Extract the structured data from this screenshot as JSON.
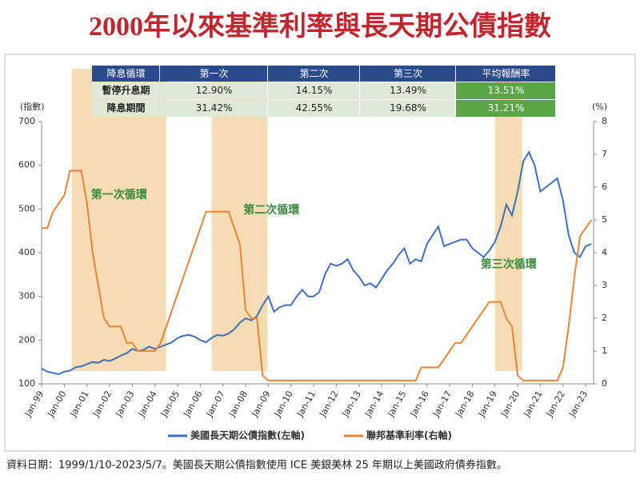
{
  "chart_data": {
    "type": "line",
    "title": "2000年以來基準利率與長天期公債指數",
    "ylabel": "(指數)",
    "y2label": "(%)",
    "x": [
      1999,
      1999.25,
      1999.5,
      1999.75,
      2000,
      2000.25,
      2000.5,
      2000.75,
      2001,
      2001.25,
      2001.5,
      2001.75,
      2002,
      2002.25,
      2002.5,
      2002.75,
      2003,
      2003.25,
      2003.5,
      2003.75,
      2004,
      2004.25,
      2004.5,
      2004.75,
      2005,
      2005.25,
      2005.5,
      2005.75,
      2006,
      2006.25,
      2006.5,
      2006.75,
      2007,
      2007.25,
      2007.5,
      2007.75,
      2008,
      2008.25,
      2008.5,
      2008.75,
      2009,
      2009.25,
      2009.5,
      2009.75,
      2010,
      2010.25,
      2010.5,
      2010.75,
      2011,
      2011.25,
      2011.5,
      2011.75,
      2012,
      2012.25,
      2012.5,
      2012.75,
      2013,
      2013.25,
      2013.5,
      2013.75,
      2014,
      2014.25,
      2014.5,
      2014.75,
      2015,
      2015.25,
      2015.5,
      2015.75,
      2016,
      2016.25,
      2016.5,
      2016.75,
      2017,
      2017.25,
      2017.5,
      2017.75,
      2018,
      2018.25,
      2018.5,
      2018.75,
      2019,
      2019.25,
      2019.5,
      2019.75,
      2020,
      2020.25,
      2020.5,
      2020.75,
      2021,
      2021.25,
      2021.5,
      2021.75,
      2022,
      2022.25,
      2022.5,
      2022.75,
      2023,
      2023.25
    ],
    "series": [
      {
        "name": "美國長天期公債指數(左軸)",
        "color": "#3f6fbf",
        "axis": "y",
        "values": [
          135,
          128,
          125,
          122,
          128,
          130,
          138,
          140,
          145,
          150,
          148,
          155,
          152,
          158,
          165,
          170,
          180,
          175,
          178,
          185,
          180,
          185,
          190,
          195,
          205,
          210,
          212,
          208,
          200,
          195,
          205,
          212,
          210,
          215,
          225,
          240,
          250,
          245,
          255,
          280,
          300,
          265,
          275,
          280,
          280,
          300,
          315,
          300,
          300,
          310,
          350,
          375,
          370,
          375,
          385,
          360,
          345,
          325,
          330,
          320,
          340,
          360,
          375,
          395,
          410,
          375,
          385,
          380,
          420,
          440,
          460,
          415,
          420,
          425,
          430,
          430,
          410,
          400,
          390,
          405,
          425,
          460,
          510,
          485,
          540,
          610,
          630,
          600,
          540,
          550,
          560,
          570,
          520,
          440,
          400,
          390,
          415,
          420
        ]
      },
      {
        "name": "聯邦基準利率(右軸)",
        "color": "#e8853a",
        "axis": "y2",
        "values": [
          4.75,
          4.75,
          5.25,
          5.5,
          5.75,
          6.5,
          6.5,
          6.5,
          5.5,
          4.0,
          3.0,
          2.0,
          1.75,
          1.75,
          1.75,
          1.25,
          1.25,
          1.0,
          1.0,
          1.0,
          1.0,
          1.25,
          1.75,
          2.25,
          2.75,
          3.25,
          3.75,
          4.25,
          4.75,
          5.25,
          5.25,
          5.25,
          5.25,
          5.25,
          4.75,
          4.25,
          2.25,
          2.0,
          2.0,
          0.25,
          0.1,
          0.1,
          0.1,
          0.1,
          0.1,
          0.1,
          0.1,
          0.1,
          0.1,
          0.1,
          0.1,
          0.1,
          0.1,
          0.1,
          0.1,
          0.1,
          0.1,
          0.1,
          0.1,
          0.1,
          0.1,
          0.1,
          0.1,
          0.1,
          0.1,
          0.1,
          0.1,
          0.5,
          0.5,
          0.5,
          0.5,
          0.75,
          1.0,
          1.25,
          1.25,
          1.5,
          1.75,
          2.0,
          2.25,
          2.5,
          2.5,
          2.5,
          2.0,
          1.75,
          0.25,
          0.1,
          0.1,
          0.1,
          0.1,
          0.1,
          0.1,
          0.1,
          0.5,
          1.75,
          3.25,
          4.5,
          4.75,
          5.0
        ]
      }
    ],
    "xlim": [
      1999,
      2023.35
    ],
    "xticks": [
      {
        "value": 1999,
        "label": "Jan-99"
      },
      {
        "value": 2000,
        "label": "Jan-00"
      },
      {
        "value": 2001,
        "label": "Jan-01"
      },
      {
        "value": 2002,
        "label": "Jan-02"
      },
      {
        "value": 2003,
        "label": "Jan-03"
      },
      {
        "value": 2004,
        "label": "Jan-04"
      },
      {
        "value": 2005,
        "label": "Jan-05"
      },
      {
        "value": 2006,
        "label": "Jan-06"
      },
      {
        "value": 2007,
        "label": "Jan-07"
      },
      {
        "value": 2008,
        "label": "Jan-08"
      },
      {
        "value": 2009,
        "label": "Jan-09"
      },
      {
        "value": 2010,
        "label": "Jan-10"
      },
      {
        "value": 2011,
        "label": "Jan-11"
      },
      {
        "value": 2012,
        "label": "Jan-12"
      },
      {
        "value": 2013,
        "label": "Jan-13"
      },
      {
        "value": 2014,
        "label": "Jan-14"
      },
      {
        "value": 2015,
        "label": "Jan-15"
      },
      {
        "value": 2016,
        "label": "Jan-16"
      },
      {
        "value": 2017,
        "label": "Jan-17"
      },
      {
        "value": 2018,
        "label": "Jan-18"
      },
      {
        "value": 2019,
        "label": "Jan-19"
      },
      {
        "value": 2020,
        "label": "Jan-20"
      },
      {
        "value": 2021,
        "label": "Jan-21"
      },
      {
        "value": 2022,
        "label": "Jan-22"
      },
      {
        "value": 2023,
        "label": "Jan-23"
      }
    ],
    "ylim": [
      100,
      700
    ],
    "yticks": [
      100,
      200,
      300,
      400,
      500,
      600,
      700
    ],
    "y2lim": [
      0,
      8
    ],
    "y2ticks": [
      0,
      1,
      2,
      3,
      4,
      5,
      6,
      7,
      8
    ],
    "cycles": [
      {
        "label": "第一次循環",
        "start": 2000.33,
        "end": 2004.5
      },
      {
        "label": "第二次循環",
        "start": 2006.5,
        "end": 2008.95
      },
      {
        "label": "第三次循環",
        "start": 2019.0,
        "end": 2020.2
      }
    ],
    "cycle_color": "#f3d6a6",
    "table": {
      "header": [
        "降息循環",
        "第一次",
        "第二次",
        "第三次",
        "平均報酬率"
      ],
      "rows": [
        [
          "暫停升息期",
          "12.90%",
          "14.15%",
          "13.49%",
          "13.51%"
        ],
        [
          "降息期間",
          "31.42%",
          "42.55%",
          "19.68%",
          "31.21%"
        ]
      ]
    }
  },
  "footnote": "資料日期：1999/1/10-2023/5/7。美國長天期公債指數使用 ICE 美銀美林 25 年期以上美國政府債券指數。"
}
